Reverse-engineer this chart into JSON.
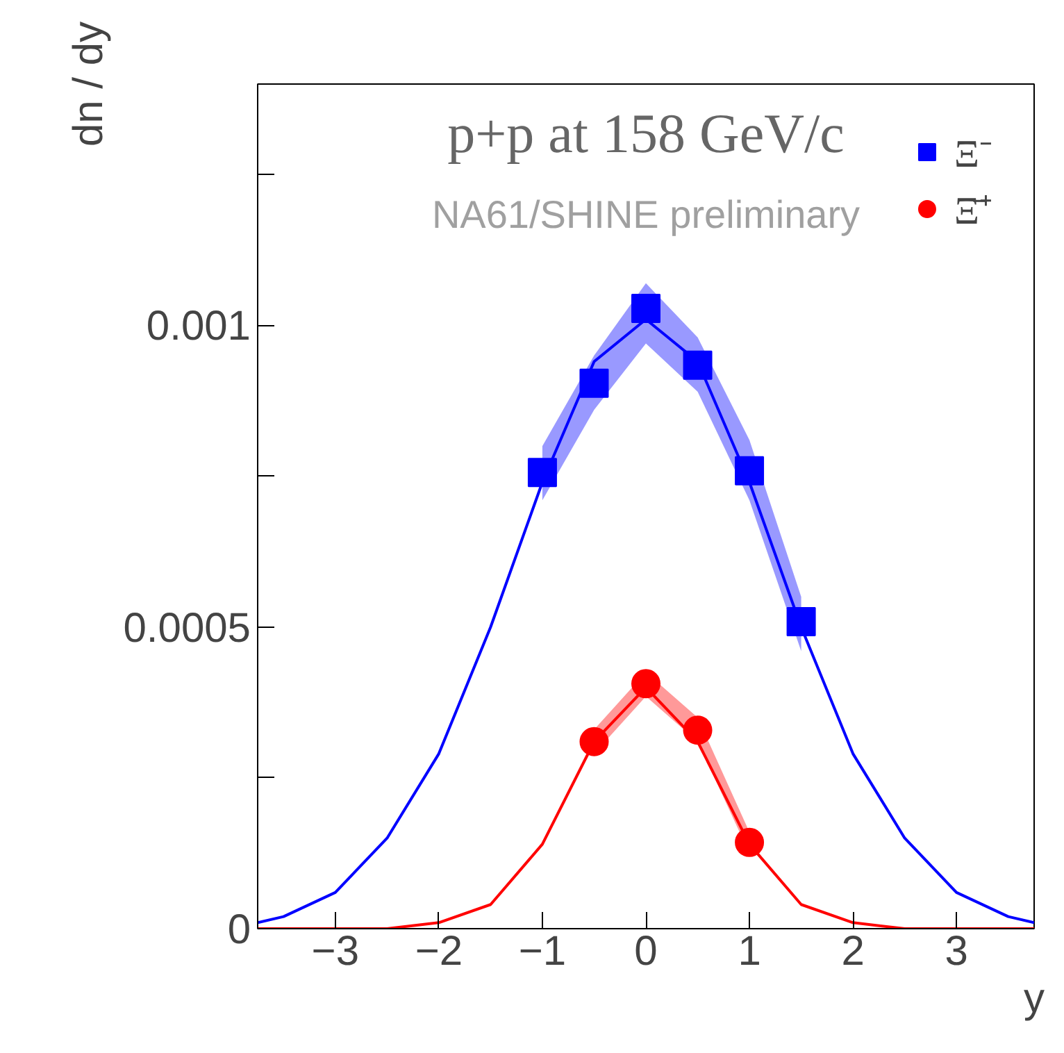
{
  "chart_data": {
    "type": "scatter",
    "title": "p+p at 158 GeV/c",
    "xlabel": "y",
    "ylabel": "dn / dy",
    "annotations": [
      "NA61/SHINE preliminary"
    ],
    "xlim": [
      -3.75,
      3.75
    ],
    "ylim": [
      0,
      0.0014
    ],
    "xticks": [
      {
        "value": -3,
        "label": "−3"
      },
      {
        "value": -2,
        "label": "−2"
      },
      {
        "value": -1,
        "label": "−1"
      },
      0,
      1,
      2,
      3
    ],
    "yticks": [
      0,
      {
        "value": 0.00025,
        "label": null
      },
      0.0005,
      {
        "value": 0.00075,
        "label": null
      },
      0.001,
      {
        "value": 0.00125,
        "label": null
      }
    ],
    "grid": false,
    "legend": "top right",
    "series": [
      {
        "name": "Ξ⁻",
        "color": "#0000ff",
        "marker": "square",
        "x": [
          -1,
          -0.5,
          0,
          0.5,
          1,
          1.5
        ],
        "values": [
          0.000756,
          0.000904,
          0.001028,
          0.000934,
          0.000759,
          0.000509
        ],
        "lower": [
          0.00071,
          0.00086,
          0.00097,
          0.00089,
          0.00071,
          0.00046
        ],
        "upper": [
          0.0008,
          0.00095,
          0.00107,
          0.00098,
          0.00081,
          0.00055
        ]
      },
      {
        "name": "Ξ̄⁺",
        "color": "#ff0000",
        "marker": "circle",
        "x": [
          -0.5,
          0,
          0.5,
          1
        ],
        "values": [
          0.00031,
          0.000406,
          0.000329,
          0.000143
        ],
        "lower": [
          0.00029,
          0.000385,
          0.00031,
          0.000125
        ],
        "upper": [
          0.00033,
          0.000425,
          0.00035,
          0.00016
        ]
      },
      {
        "type": "line",
        "color": "#0000ff",
        "x": [
          -3.75,
          -3.5,
          -3,
          -2.5,
          -2,
          -1.5,
          -1,
          -0.5,
          0,
          0.5,
          1,
          1.5,
          2,
          2.5,
          3,
          3.5,
          3.75
        ],
        "values": [
          1e-05,
          2e-05,
          6e-05,
          0.00015,
          0.00029,
          0.0005,
          0.00074,
          0.00094,
          0.00101,
          0.00094,
          0.00074,
          0.0005,
          0.00029,
          0.00015,
          6e-05,
          2e-05,
          1e-05
        ]
      },
      {
        "type": "line",
        "color": "#ff0000",
        "x": [
          -3.75,
          -3,
          -2.5,
          -2,
          -1.5,
          -1,
          -0.5,
          0,
          0.5,
          1,
          1.5,
          2,
          2.5,
          3,
          3.75
        ],
        "values": [
          0,
          0,
          0,
          1e-05,
          4e-05,
          0.00014,
          0.00031,
          0.0004,
          0.00031,
          0.00014,
          4e-05,
          1e-05,
          0,
          0,
          0
        ]
      }
    ]
  }
}
